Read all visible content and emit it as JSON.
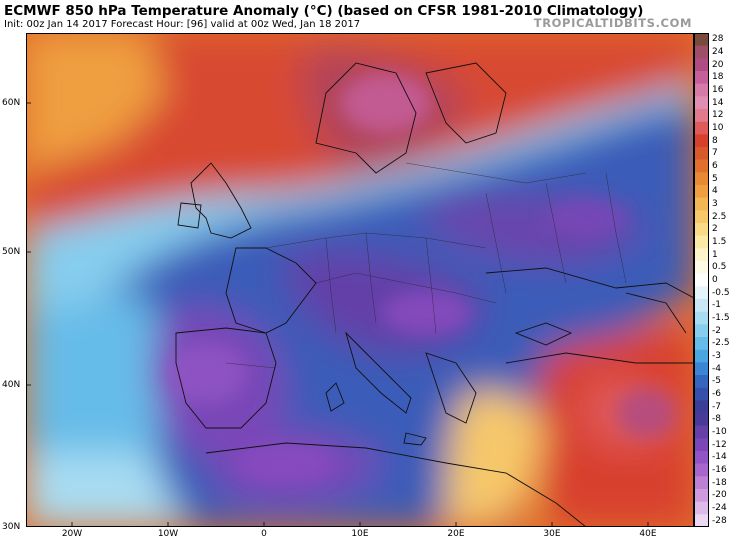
{
  "header": {
    "title": "ECMWF 850 hPa Temperature Anomaly (°C) (based on CFSR 1981-2010 Climatology)",
    "subtitle": "Init: 00z Jan 14 2017   Forecast Hour: [96]   valid at 00z Wed, Jan 18 2017",
    "brand": "TROPICALTIDBITS.COM"
  },
  "map": {
    "lat_labels": [
      "60N",
      "50N",
      "40N",
      "30N"
    ],
    "lon_labels": [
      "20W",
      "10W",
      "0",
      "10E",
      "20E",
      "30E",
      "40E"
    ]
  },
  "colorbar": {
    "labels": [
      "28",
      "24",
      "20",
      "18",
      "16",
      "14",
      "12",
      "10",
      "8",
      "7",
      "6",
      "5",
      "4",
      "3",
      "2.5",
      "2",
      "1.5",
      "1",
      "0.5",
      "0",
      "-0.5",
      "-1",
      "-1.5",
      "-2",
      "-2.5",
      "-3",
      "-4",
      "-5",
      "-6",
      "-7",
      "-8",
      "-10",
      "-12",
      "-14",
      "-16",
      "-18",
      "-20",
      "-24",
      "-28"
    ],
    "colors": [
      "#7a4a3a",
      "#9e4e66",
      "#b04c84",
      "#c65e9c",
      "#d67aa8",
      "#e08fb2",
      "#e27a8e",
      "#e05a5a",
      "#d8402e",
      "#d85a2c",
      "#e0702c",
      "#e88a34",
      "#ef9f40",
      "#f3b654",
      "#f6c86a",
      "#f9da86",
      "#fbeaa6",
      "#fdf4cc",
      "#fefae6",
      "#ffffff",
      "#e6f4fb",
      "#c8e8f6",
      "#a8dcf2",
      "#86cdee",
      "#66bce8",
      "#4aa6e0",
      "#3a86d4",
      "#3466c0",
      "#3450aa",
      "#3a3e98",
      "#4a3a98",
      "#6440a8",
      "#7a46b8",
      "#9254c4",
      "#a866cc",
      "#be80d4",
      "#d09ade",
      "#debae8",
      "#ecd8f2"
    ]
  }
}
